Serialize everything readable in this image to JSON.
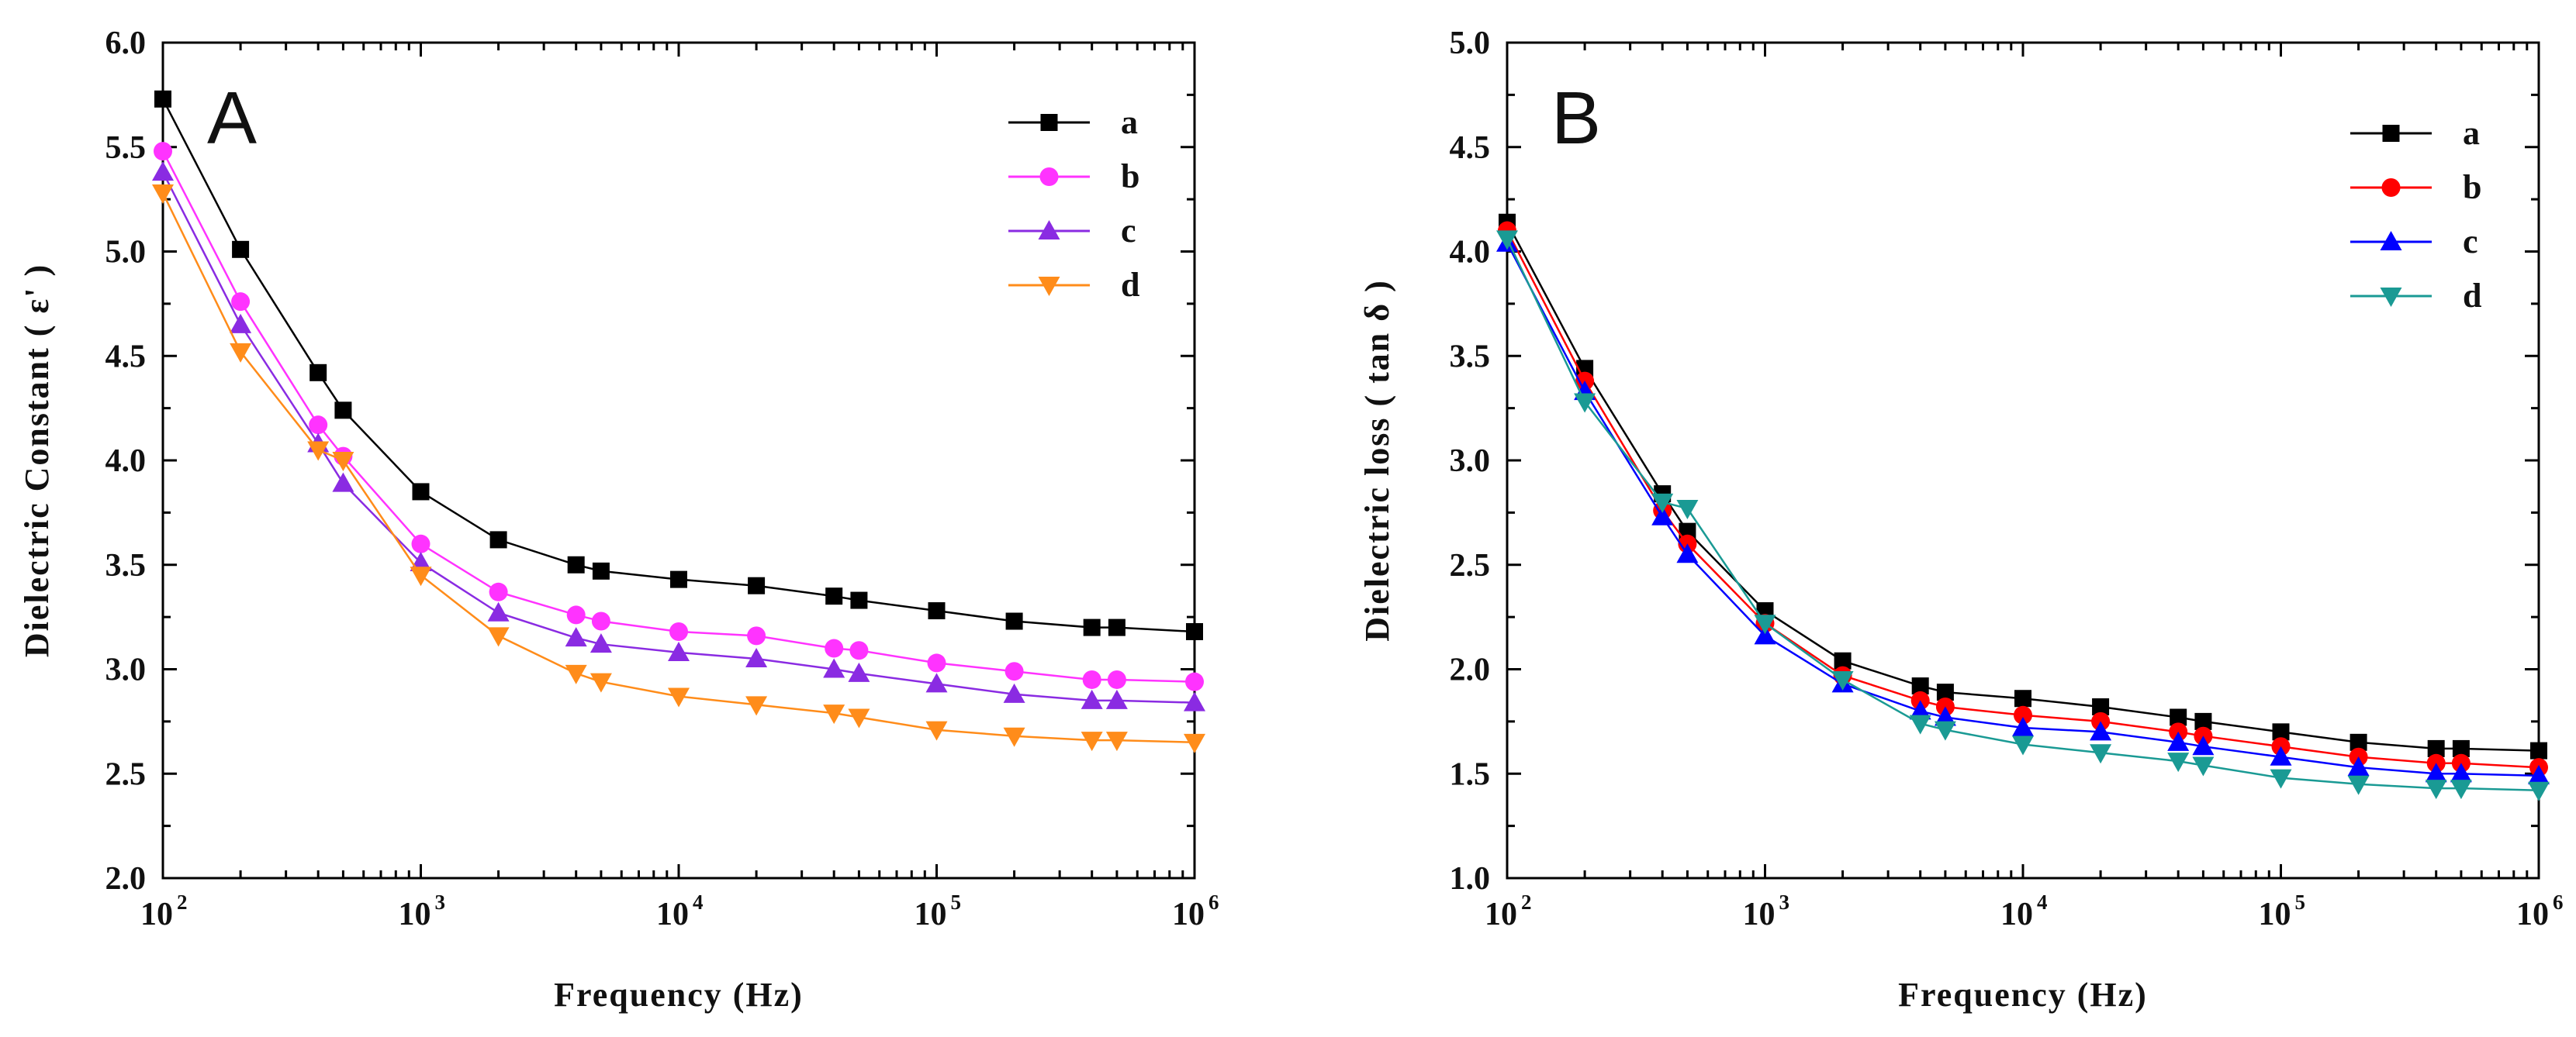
{
  "chart_data": [
    {
      "type": "line",
      "panel_label": "A",
      "title": "",
      "xlabel": "Frequency (Hz)",
      "ylabel": "Dielectric Constant ( ε' )",
      "x_scale": "log",
      "xlim": [
        100,
        1000000
      ],
      "ylim": [
        2.0,
        6.0
      ],
      "y_ticks": [
        "2.0",
        "2.5",
        "3.0",
        "3.5",
        "4.0",
        "4.5",
        "5.0",
        "5.5",
        "6.0"
      ],
      "x_ticks": [
        {
          "base": "10",
          "exp": "2"
        },
        {
          "base": "10",
          "exp": "3"
        },
        {
          "base": "10",
          "exp": "4"
        },
        {
          "base": "10",
          "exp": "5"
        },
        {
          "base": "10",
          "exp": "6"
        }
      ],
      "grid": false,
      "legend_position": "top-right",
      "x": [
        100,
        200,
        400,
        500,
        1000,
        2000,
        4000,
        5000,
        10000,
        20000,
        40000,
        50000,
        100000,
        200000,
        400000,
        500000,
        1000000
      ],
      "series": [
        {
          "name": "a",
          "color": "#000000",
          "marker": "square",
          "values": [
            5.73,
            5.01,
            4.42,
            4.24,
            3.85,
            3.62,
            3.5,
            3.47,
            3.43,
            3.4,
            3.35,
            3.33,
            3.28,
            3.23,
            3.2,
            3.2,
            3.18
          ]
        },
        {
          "name": "b",
          "color": "#ff33ff",
          "marker": "circle",
          "values": [
            5.48,
            4.76,
            4.17,
            4.02,
            3.6,
            3.37,
            3.26,
            3.23,
            3.18,
            3.16,
            3.1,
            3.09,
            3.03,
            2.99,
            2.95,
            2.95,
            2.94
          ]
        },
        {
          "name": "c",
          "color": "#8a2be2",
          "marker": "triangle-up",
          "values": [
            5.38,
            4.65,
            4.08,
            3.89,
            3.51,
            3.27,
            3.15,
            3.12,
            3.08,
            3.05,
            3.0,
            2.98,
            2.93,
            2.88,
            2.85,
            2.85,
            2.84
          ]
        },
        {
          "name": "d",
          "color": "#ff8c1a",
          "marker": "triangle-down",
          "values": [
            5.28,
            4.52,
            4.05,
            4.0,
            3.45,
            3.16,
            2.98,
            2.94,
            2.87,
            2.83,
            2.79,
            2.77,
            2.71,
            2.68,
            2.66,
            2.66,
            2.65
          ]
        }
      ]
    },
    {
      "type": "line",
      "panel_label": "B",
      "title": "",
      "xlabel": "Frequency (Hz)",
      "ylabel": "Dielectric loss ( tan δ )",
      "x_scale": "log",
      "xlim": [
        100,
        1000000
      ],
      "ylim": [
        1.0,
        5.0
      ],
      "y_ticks": [
        "1.0",
        "1.5",
        "2.0",
        "2.5",
        "3.0",
        "3.5",
        "4.0",
        "4.5",
        "5.0"
      ],
      "x_ticks": [
        {
          "base": "10",
          "exp": "2"
        },
        {
          "base": "10",
          "exp": "3"
        },
        {
          "base": "10",
          "exp": "4"
        },
        {
          "base": "10",
          "exp": "5"
        },
        {
          "base": "10",
          "exp": "6"
        }
      ],
      "grid": false,
      "legend_position": "top-right",
      "x": [
        100,
        200,
        400,
        500,
        1000,
        2000,
        4000,
        5000,
        10000,
        20000,
        40000,
        50000,
        100000,
        200000,
        400000,
        500000,
        1000000
      ],
      "series": [
        {
          "name": "a",
          "color": "#000000",
          "marker": "square",
          "values": [
            4.14,
            3.44,
            2.84,
            2.66,
            2.28,
            2.04,
            1.92,
            1.89,
            1.86,
            1.82,
            1.77,
            1.75,
            1.7,
            1.65,
            1.62,
            1.62,
            1.61
          ]
        },
        {
          "name": "b",
          "color": "#ff0000",
          "marker": "circle",
          "values": [
            4.1,
            3.38,
            2.76,
            2.6,
            2.22,
            1.97,
            1.85,
            1.82,
            1.78,
            1.75,
            1.7,
            1.68,
            1.63,
            1.58,
            1.55,
            1.55,
            1.53
          ]
        },
        {
          "name": "c",
          "color": "#0000ff",
          "marker": "triangle-up",
          "values": [
            4.04,
            3.33,
            2.73,
            2.55,
            2.16,
            1.93,
            1.8,
            1.77,
            1.72,
            1.7,
            1.65,
            1.63,
            1.58,
            1.53,
            1.5,
            1.5,
            1.49
          ]
        },
        {
          "name": "d",
          "color": "#1a9a94",
          "marker": "triangle-down",
          "values": [
            4.06,
            3.28,
            2.8,
            2.77,
            2.22,
            1.95,
            1.74,
            1.71,
            1.64,
            1.6,
            1.56,
            1.54,
            1.48,
            1.45,
            1.43,
            1.43,
            1.42
          ]
        }
      ]
    }
  ]
}
